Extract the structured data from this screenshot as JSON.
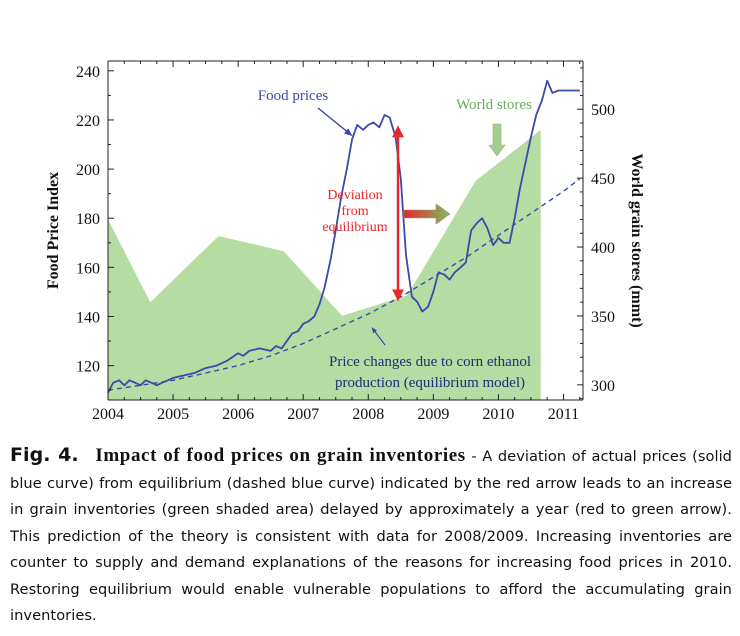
{
  "chart_data": {
    "type": "line",
    "ylabel": "Food Price Index",
    "y2label": "World grain stores (mmt)",
    "xlim": [
      2004.0,
      2011.3
    ],
    "ylim": [
      106,
      244
    ],
    "y2lim": [
      289,
      535
    ],
    "x_ticks": [
      2004,
      2005,
      2006,
      2007,
      2008,
      2009,
      2010,
      2011
    ],
    "y_ticks": [
      120,
      140,
      160,
      180,
      200,
      220,
      240
    ],
    "y2_ticks": [
      300,
      350,
      400,
      450,
      500
    ],
    "series": [
      {
        "name": "Food prices",
        "axis": "left",
        "color": "#3a4aa8",
        "style": "solid",
        "x": [
          2004.0,
          2004.08,
          2004.17,
          2004.25,
          2004.33,
          2004.42,
          2004.5,
          2004.58,
          2004.67,
          2004.75,
          2004.83,
          2004.92,
          2005.0,
          2005.17,
          2005.33,
          2005.5,
          2005.67,
          2005.83,
          2006.0,
          2006.08,
          2006.17,
          2006.33,
          2006.5,
          2006.58,
          2006.67,
          2006.75,
          2006.83,
          2006.92,
          2007.0,
          2007.08,
          2007.17,
          2007.25,
          2007.33,
          2007.42,
          2007.5,
          2007.58,
          2007.67,
          2007.75,
          2007.83,
          2007.92,
          2008.0,
          2008.08,
          2008.17,
          2008.25,
          2008.33,
          2008.42,
          2008.5,
          2008.58,
          2008.67,
          2008.75,
          2008.83,
          2008.92,
          2009.0,
          2009.08,
          2009.17,
          2009.25,
          2009.33,
          2009.42,
          2009.5,
          2009.58,
          2009.67,
          2009.75,
          2009.83,
          2009.92,
          2010.0,
          2010.08,
          2010.17,
          2010.25,
          2010.33,
          2010.42,
          2010.5,
          2010.58,
          2010.67,
          2010.75,
          2010.83,
          2010.92,
          2011.0,
          2011.08,
          2011.17,
          2011.25
        ],
        "y": [
          109,
          113,
          114,
          112,
          114,
          113,
          112,
          114,
          113,
          112,
          113,
          114,
          115,
          116,
          117,
          119,
          120,
          122,
          125,
          124,
          126,
          127,
          126,
          128,
          127,
          130,
          133,
          134,
          137,
          138,
          140,
          145,
          152,
          163,
          175,
          188,
          200,
          212,
          218,
          216,
          218,
          219,
          217,
          222,
          221,
          213,
          196,
          165,
          148,
          146,
          142,
          144,
          150,
          158,
          157,
          155,
          158,
          160,
          162,
          175,
          178,
          180,
          176,
          169,
          172,
          170,
          170,
          180,
          192,
          203,
          213,
          222,
          228,
          236,
          231,
          232,
          232,
          232,
          232,
          232
        ]
      },
      {
        "name": "Price changes due to corn ethanol production (equilibrium model)",
        "axis": "left",
        "color": "#3a4aa8",
        "style": "dashed",
        "x": [
          2004.0,
          2004.5,
          2005.0,
          2005.5,
          2006.0,
          2006.5,
          2007.0,
          2007.5,
          2008.0,
          2008.5,
          2009.0,
          2009.5,
          2010.0,
          2010.5,
          2011.0,
          2011.25
        ],
        "y": [
          110,
          112,
          114,
          117,
          120,
          124,
          129,
          135,
          141,
          148,
          156,
          164,
          173,
          182,
          191,
          196
        ]
      },
      {
        "name": "World stores",
        "axis": "right",
        "type": "area",
        "color": "#b5dca3",
        "x": [
          2004.0,
          2004.65,
          2005.7,
          2006.7,
          2007.6,
          2008.6,
          2009.65,
          2010.65
        ],
        "y": [
          420,
          360,
          408,
          397,
          350,
          365,
          448,
          485
        ]
      }
    ],
    "annotations": [
      {
        "text": "Food prices",
        "color": "#3a4aa8"
      },
      {
        "text": "World stores",
        "color": "#6aab5a"
      },
      {
        "text_lines": [
          "Deviation",
          "from",
          "equilibrium"
        ],
        "color": "#e8262a"
      },
      {
        "text_lines": [
          "Price changes due to corn ethanol",
          "production (equilibrium model)"
        ],
        "color": "#1f2f7a"
      }
    ],
    "grid": false
  },
  "caption": {
    "fig_number": "Fig. 4.",
    "title": "Impact of food prices on grain inventories",
    "text": " - A deviation of actual prices (solid blue curve) from equilibrium (dashed blue curve) indicated by the red arrow leads to an increase in grain inventories (green shaded area) delayed by approximately a year (red to green arrow). This prediction of the theory is consistent with data for 2008/2009. Increasing inventories are counter to supply and demand explanations of the reasons for increasing food prices in 2010. Restoring equilibrium would enable vulnerable populations to afford the accumulating grain inventories."
  }
}
